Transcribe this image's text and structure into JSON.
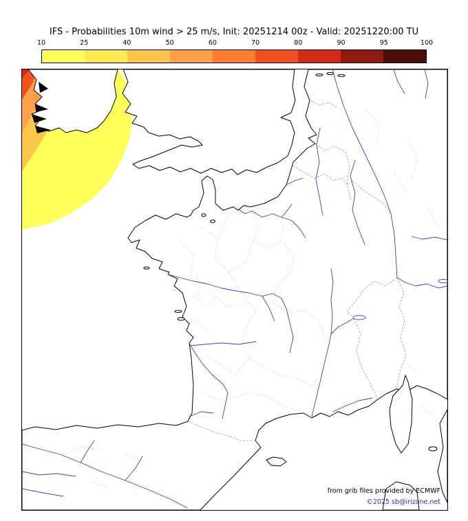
{
  "header": {
    "title": "IFS - Probabilities 10m wind > 25 m/s, Init: 20251214 00z - Valid: 20251220:00 TU"
  },
  "colorbar": {
    "tick_labels": [
      "10",
      "25",
      "40",
      "50",
      "60",
      "70",
      "80",
      "90",
      "95",
      "100"
    ],
    "segment_colors": [
      "#ffff5a",
      "#ffe94e",
      "#ffc64b",
      "#ffa14b",
      "#ff7d33",
      "#f2501e",
      "#d42a14",
      "#8f1a10",
      "#4a0d08"
    ]
  },
  "map": {
    "sea_color": "#ffffff",
    "land_color": "#ffffff",
    "coast_color": "#000000",
    "river_color": "#3344cc",
    "country_border_color": "#9a9a9a",
    "department_border_color": "#c4c4c4",
    "contours": [
      {
        "range": ">=10",
        "color": "#ffff5a"
      },
      {
        "range": ">=25",
        "color": "#ffc64b"
      },
      {
        "range": ">=40",
        "color": "#ffa14b"
      },
      {
        "range": ">=50",
        "color": "#f2501e"
      },
      {
        "range": ">=60",
        "color": "#d42a14"
      }
    ]
  },
  "credits": {
    "line1": "from grib files provided by ECMWF",
    "line2": "©2025 sb@irizone.net"
  },
  "chart_data": {
    "type": "heatmap",
    "title": "IFS - Probabilities 10m wind > 25 m/s",
    "init": "20251214 00z",
    "valid": "20251220:00 TU",
    "colorbar_levels": [
      10,
      25,
      40,
      50,
      60,
      70,
      80,
      90,
      95,
      100
    ],
    "shaded_region": "probability maximum in northwest corner of domain (Atlantic, west of Ireland), decreasing outward from >=60 at the corner to >=10"
  }
}
